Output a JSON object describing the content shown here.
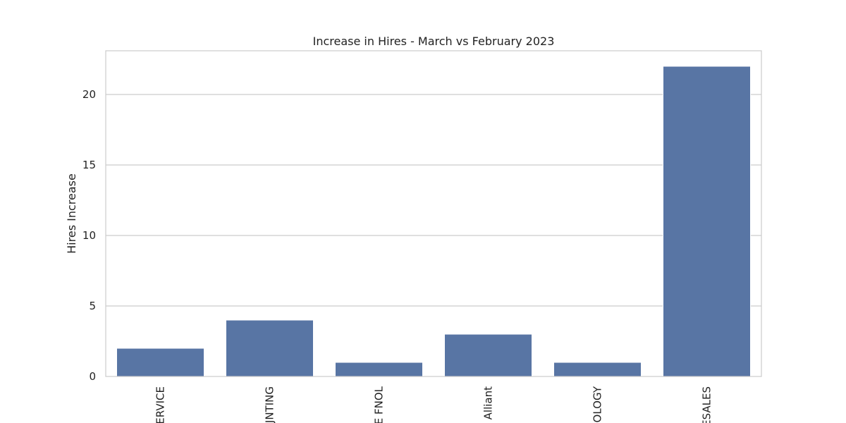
{
  "chart_data": {
    "type": "bar",
    "title": "Increase in Hires - March vs February 2023",
    "xlabel": "",
    "ylabel": "Hires Increase",
    "categories": [
      "ERVICE",
      "JNTING",
      "E FNOL",
      "Alliant",
      "OLOGY",
      "ESALES"
    ],
    "values": [
      2,
      4,
      1,
      3,
      1,
      22
    ],
    "ylim": [
      0,
      23.1
    ],
    "yticks": [
      0,
      5,
      10,
      15,
      20
    ],
    "grid": true,
    "bar_color": "#5875a4",
    "grid_color": "#cccccc",
    "spine_color": "#cccccc"
  }
}
